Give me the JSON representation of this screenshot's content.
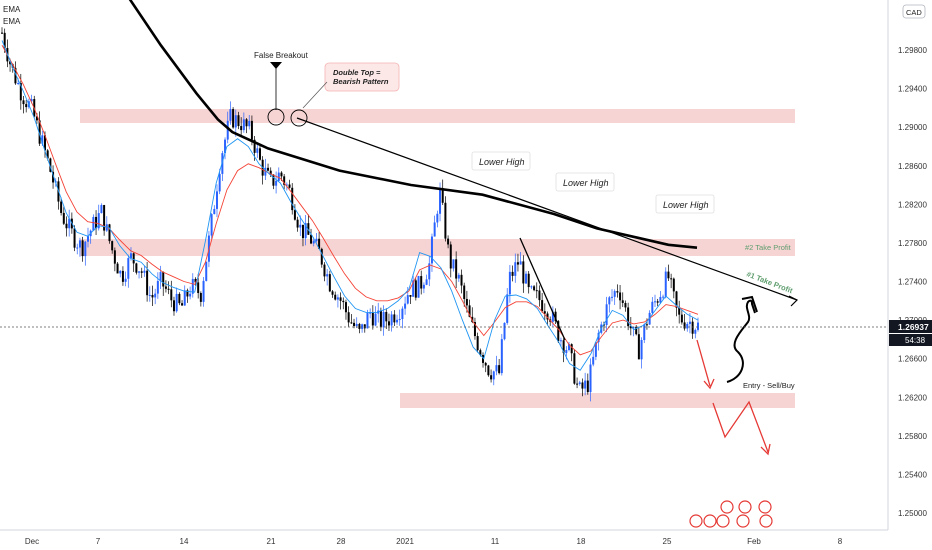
{
  "header": {
    "indicator_1": "EMA",
    "indicator_2": "EMA",
    "currency_badge": "CAD"
  },
  "price_axis": {
    "ticks": [
      "1.29800",
      "1.29400",
      "1.29000",
      "1.28600",
      "1.28200",
      "1.27800",
      "1.27400",
      "1.27000",
      "1.26600",
      "1.26200",
      "1.25800",
      "1.25400",
      "1.25000"
    ],
    "current_price": "1.26937",
    "countdown": "54:38"
  },
  "time_axis": {
    "ticks": [
      "Dec",
      "7",
      "14",
      "21",
      "28",
      "2021",
      "11",
      "18",
      "25",
      "Feb",
      "8"
    ]
  },
  "annotations": {
    "false_breakout": "False Breakout",
    "double_top": "Double Top = Bearish Pattern",
    "lower_high_1": "Lower High",
    "lower_high_2": "Lower High",
    "lower_high_3": "Lower High",
    "take_profit_2": "#2 Take Profit",
    "take_profit_1": "#1 Take Profit",
    "entry": "Entry - Sell/Buy"
  },
  "colors": {
    "bull_candle": "#2962ff",
    "bear_candle": "#000000",
    "ema_fast": "#2196f3",
    "ema_slow": "#f44336",
    "ema_long": "#000000",
    "zone": "#f4c7c7",
    "arrow": "#e53935",
    "take_profit_text": "#5f9e6e"
  },
  "chart_data": {
    "type": "candlestick",
    "instrument_currency": "CAD",
    "y_unit": "USD/CAD price",
    "ylim": [
      1.248,
      1.302
    ],
    "x_ticks": [
      "Dec",
      "7",
      "14",
      "21",
      "28",
      "2021",
      "11",
      "18",
      "25",
      "Feb",
      "8"
    ],
    "y_ticks": [
      1.298,
      1.294,
      1.29,
      1.286,
      1.282,
      1.278,
      1.274,
      1.27,
      1.266,
      1.262,
      1.258,
      1.254,
      1.25
    ],
    "last_price": 1.26937,
    "price_path_hourly_closes_estimated": [
      1.2998,
      1.296,
      1.2935,
      1.2918,
      1.2885,
      1.285,
      1.281,
      1.279,
      1.2775,
      1.2795,
      1.2812,
      1.2775,
      1.2745,
      1.2765,
      1.2752,
      1.2722,
      1.274,
      1.2722,
      1.2712,
      1.2735,
      1.2728,
      1.2795,
      1.287,
      1.291,
      1.2905,
      1.2895,
      1.2862,
      1.2842,
      1.2852,
      1.2832,
      1.2795,
      1.2785,
      1.2768,
      1.2738,
      1.2722,
      1.27,
      1.2685,
      1.2708,
      1.2698,
      1.2702,
      1.2712,
      1.2732,
      1.2735,
      1.2758,
      1.2835,
      1.2762,
      1.274,
      1.27,
      1.2672,
      1.2648,
      1.2645,
      1.2742,
      1.2762,
      1.2727,
      1.2722,
      1.271,
      1.2685,
      1.2668,
      1.2625,
      1.2635,
      1.2685,
      1.2718,
      1.2735,
      1.27,
      1.2668,
      1.2705,
      1.2725,
      1.2745,
      1.2702,
      1.2699,
      1.2694
    ],
    "ema_fast_estimated": [
      1.299,
      1.2962,
      1.2937,
      1.291,
      1.2876,
      1.2843,
      1.2811,
      1.2791,
      1.2787,
      1.2798,
      1.2796,
      1.2777,
      1.2764,
      1.276,
      1.2748,
      1.2739,
      1.2734,
      1.273,
      1.2729,
      1.2782,
      1.2842,
      1.288,
      1.2888,
      1.288,
      1.2862,
      1.2851,
      1.2842,
      1.2822,
      1.2804,
      1.2787,
      1.2766,
      1.2745,
      1.2725,
      1.2712,
      1.2708,
      1.2708,
      1.2712,
      1.272,
      1.2732,
      1.277,
      1.2766,
      1.2754,
      1.273,
      1.27,
      1.2672,
      1.266,
      1.27,
      1.2725,
      1.2726,
      1.2722,
      1.2712,
      1.2694,
      1.2677,
      1.2655,
      1.2648,
      1.2665,
      1.2692,
      1.271,
      1.2705,
      1.269,
      1.2695,
      1.271,
      1.2725,
      1.2715,
      1.2706,
      1.27
    ],
    "ema_slow_estimated": [
      1.2985,
      1.2965,
      1.2944,
      1.292,
      1.2892,
      1.2862,
      1.2833,
      1.2812,
      1.2802,
      1.28,
      1.2795,
      1.2783,
      1.2772,
      1.2767,
      1.2758,
      1.275,
      1.2745,
      1.274,
      1.2737,
      1.276,
      1.28,
      1.2835,
      1.2855,
      1.2862,
      1.2858,
      1.2852,
      1.2847,
      1.2833,
      1.2818,
      1.2803,
      1.2785,
      1.2766,
      1.2748,
      1.2733,
      1.2724,
      1.272,
      1.272,
      1.2723,
      1.273,
      1.2752,
      1.2757,
      1.2753,
      1.274,
      1.272,
      1.2698,
      1.2684,
      1.2698,
      1.2713,
      1.2719,
      1.2719,
      1.2714,
      1.2702,
      1.269,
      1.2674,
      1.2664,
      1.2668,
      1.2683,
      1.2697,
      1.27,
      1.2696,
      1.2698,
      1.2706,
      1.2716,
      1.2714,
      1.271,
      1.2706
    ],
    "ema_long_estimated": [
      [
        0.0,
        1.304
      ],
      [
        0.25,
        1.2985
      ],
      [
        0.5,
        1.2935
      ],
      [
        0.65,
        1.2908
      ],
      [
        0.75,
        1.2895
      ],
      [
        1.0,
        1.2878
      ],
      [
        1.5,
        1.2855
      ],
      [
        2.0,
        1.284
      ],
      [
        2.5,
        1.283
      ],
      [
        3.0,
        1.281
      ],
      [
        3.3,
        1.2795
      ],
      [
        3.8,
        1.2778
      ],
      [
        4.0,
        1.2775
      ]
    ],
    "resistance_zone": [
      1.2898,
      1.2913
    ],
    "take_profit_2_zone": [
      1.2768,
      1.2782
    ],
    "support_zone": [
      1.2615,
      1.2628
    ],
    "descending_trendline": [
      [
        "Dec 23",
        1.2902
      ],
      [
        "Feb 2",
        1.2728
      ]
    ],
    "take_profit_1_level": 1.273,
    "take_profit_2_level": 1.2775,
    "false_breakout_high": 1.2928,
    "lower_highs": [
      1.284,
      1.2793,
      1.2785
    ],
    "grid": false,
    "legend": "top-left"
  }
}
